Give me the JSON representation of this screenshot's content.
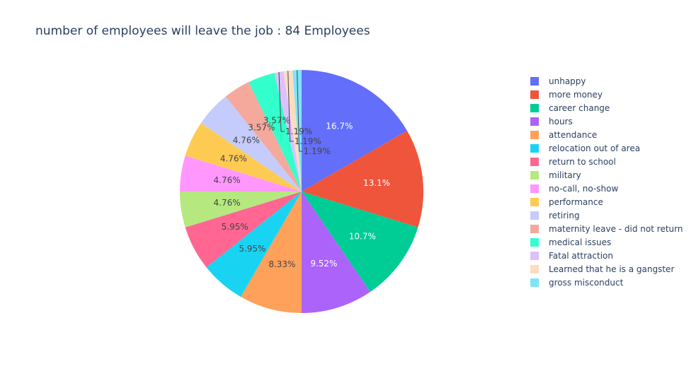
{
  "chart_data": {
    "type": "pie",
    "title": "number of employees will leave the job : 84 Employees",
    "direction": "clockwise",
    "start": "top",
    "legend_placement": "right",
    "slices": [
      {
        "label": "unhappy",
        "value": 14,
        "percent_label": "16.7%",
        "color": "#636efa"
      },
      {
        "label": "more money",
        "value": 11,
        "percent_label": "13.1%",
        "color": "#EF553B"
      },
      {
        "label": "career change",
        "value": 9,
        "percent_label": "10.7%",
        "color": "#00cc96"
      },
      {
        "label": "hours",
        "value": 8,
        "percent_label": "9.52%",
        "color": "#ab63fa"
      },
      {
        "label": "attendance",
        "value": 7,
        "percent_label": "8.33%",
        "color": "#FFA15A"
      },
      {
        "label": "relocation out of area",
        "value": 5,
        "percent_label": "5.95%",
        "color": "#19d3f3"
      },
      {
        "label": "return to school",
        "value": 5,
        "percent_label": "5.95%",
        "color": "#FF6692"
      },
      {
        "label": "military",
        "value": 4,
        "percent_label": "4.76%",
        "color": "#B6E880"
      },
      {
        "label": "no-call, no-show",
        "value": 4,
        "percent_label": "4.76%",
        "color": "#FF97FF"
      },
      {
        "label": "performance",
        "value": 4,
        "percent_label": "4.76%",
        "color": "#FECB52"
      },
      {
        "label": "retiring",
        "value": 4,
        "percent_label": "4.76%",
        "color": "#c5cbfa"
      },
      {
        "label": "maternity leave - did not return",
        "value": 3,
        "percent_label": "3.57%",
        "color": "#f4a99c"
      },
      {
        "label": "medical issues",
        "value": 3,
        "percent_label": "3.57%",
        "color": "#33ffcc"
      },
      {
        "label": "Fatal attraction",
        "value": 1,
        "percent_label": "1.19%",
        "color": "#dcc1fc"
      },
      {
        "label": "Learned that he is a gangster",
        "value": 1,
        "percent_label": "1.19%",
        "color": "#ffdcc0"
      },
      {
        "label": "gross misconduct",
        "value": 1,
        "percent_label": "1.19%",
        "color": "#7fe4f8"
      }
    ]
  }
}
